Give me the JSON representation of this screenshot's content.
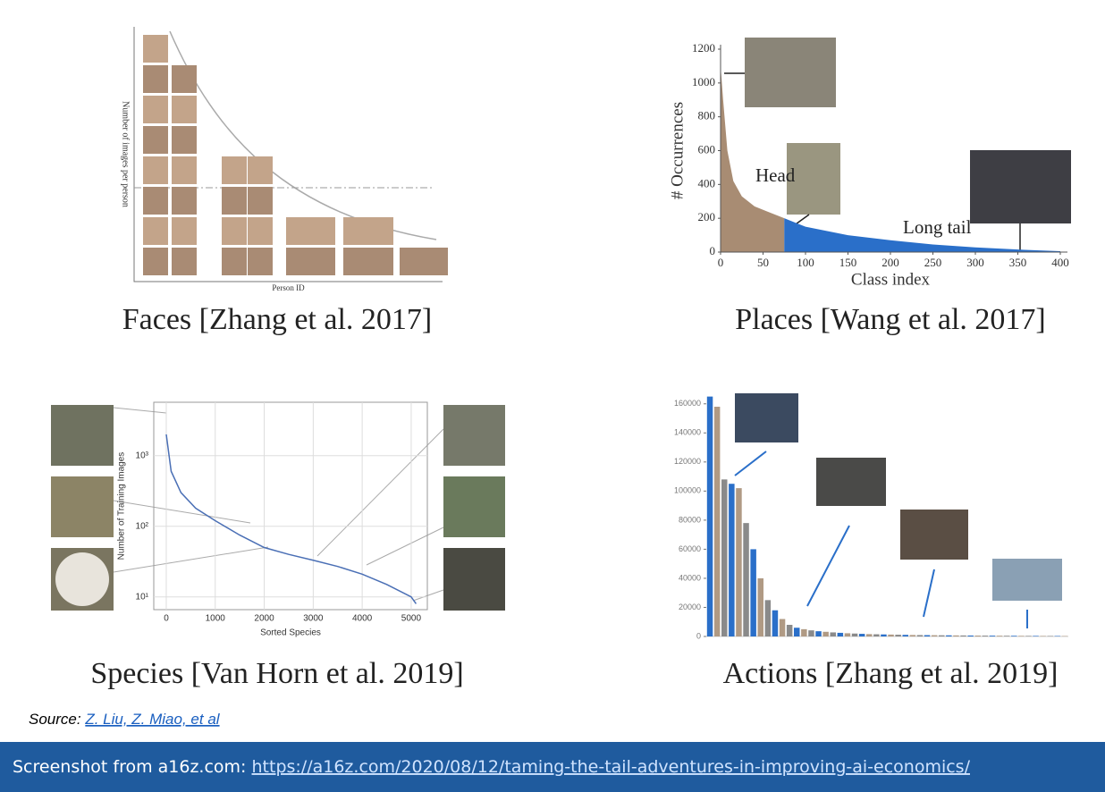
{
  "chart_data": [
    {
      "type": "illustration",
      "title": "Faces [Zhang et al. 2017]",
      "xlabel": "Person ID",
      "ylabel": "Number of images per person"
    },
    {
      "type": "area",
      "title": "Places [Wang et al. 2017]",
      "xlabel": "Class index",
      "ylabel": "# Occurrences",
      "x": [
        0,
        3,
        8,
        15,
        25,
        40,
        55,
        75,
        100,
        150,
        200,
        250,
        300,
        350,
        400
      ],
      "series": [
        {
          "name": "Head",
          "color": "#a88c73",
          "values": [
            1100,
            900,
            600,
            420,
            330,
            270,
            240,
            200,
            null,
            null,
            null,
            null,
            null,
            null,
            null
          ]
        },
        {
          "name": "Long tail",
          "color": "#2a6fc9",
          "values": [
            null,
            null,
            null,
            null,
            null,
            null,
            null,
            200,
            150,
            100,
            70,
            45,
            28,
            15,
            5
          ]
        }
      ],
      "xlim": [
        0,
        400
      ],
      "ylim": [
        0,
        1200
      ],
      "xticks": [
        0,
        50,
        100,
        150,
        200,
        250,
        300,
        350,
        400
      ],
      "yticks": [
        0,
        200,
        400,
        600,
        800,
        1000,
        1200
      ]
    },
    {
      "type": "line",
      "title": "Species [Van Horn et al. 2019]",
      "xlabel": "Sorted Species",
      "ylabel": "Number of Training Images",
      "x": [
        0,
        100,
        300,
        600,
        1000,
        1500,
        2000,
        2500,
        3000,
        3500,
        4000,
        4500,
        5000,
        5100
      ],
      "values": [
        2000,
        600,
        300,
        180,
        120,
        75,
        50,
        40,
        33,
        27,
        21,
        15,
        10,
        8
      ],
      "color": "#4a6fb5",
      "log_y": true,
      "grid": true,
      "xlim": [
        -255,
        5330
      ],
      "ylim": [
        6.6,
        5700
      ],
      "xticks": [
        0,
        1000,
        2000,
        3000,
        4000,
        5000
      ],
      "yticks": [
        {
          "value": 10,
          "label": "10¹"
        },
        {
          "value": 100,
          "label": "10²"
        },
        {
          "value": 1000,
          "label": "10³"
        }
      ]
    },
    {
      "type": "bar",
      "title": "Actions [Zhang et al. 2019]",
      "categories": [
        null,
        null,
        null,
        null,
        null,
        null,
        null,
        null,
        null,
        null,
        null,
        null,
        null,
        null,
        null,
        null,
        null,
        null,
        null,
        null,
        null,
        null,
        null,
        null,
        null,
        null,
        null,
        null,
        null,
        null,
        null,
        null,
        null,
        null,
        null,
        null,
        null,
        null,
        null,
        null,
        null,
        null,
        null,
        null,
        null,
        null,
        null,
        null,
        null,
        null
      ],
      "values": [
        165000,
        158000,
        108000,
        105000,
        102000,
        78000,
        60000,
        40000,
        25000,
        18000,
        12000,
        8000,
        6000,
        5000,
        4200,
        3600,
        3200,
        2800,
        2500,
        2200,
        2000,
        1800,
        1600,
        1500,
        1400,
        1300,
        1200,
        1100,
        1000,
        950,
        900,
        850,
        800,
        760,
        720,
        680,
        640,
        600,
        570,
        540,
        510,
        480,
        450,
        420,
        400,
        380,
        360,
        340,
        320,
        300
      ],
      "colors": [
        "#2a6fc9",
        "#b09a84",
        "#8a8a8a"
      ],
      "ylim": [
        0,
        166000
      ],
      "yticks": [
        0,
        20000,
        40000,
        60000,
        80000,
        100000,
        120000,
        140000,
        160000
      ]
    }
  ],
  "source": {
    "label": "Source:",
    "link": "Z. Liu, Z. Miao, et al"
  },
  "footer": {
    "label": "Screenshot from a16z.com:",
    "url": "https://a16z.com/2020/08/12/taming-the-tail-adventures-in-improving-ai-economics/"
  }
}
